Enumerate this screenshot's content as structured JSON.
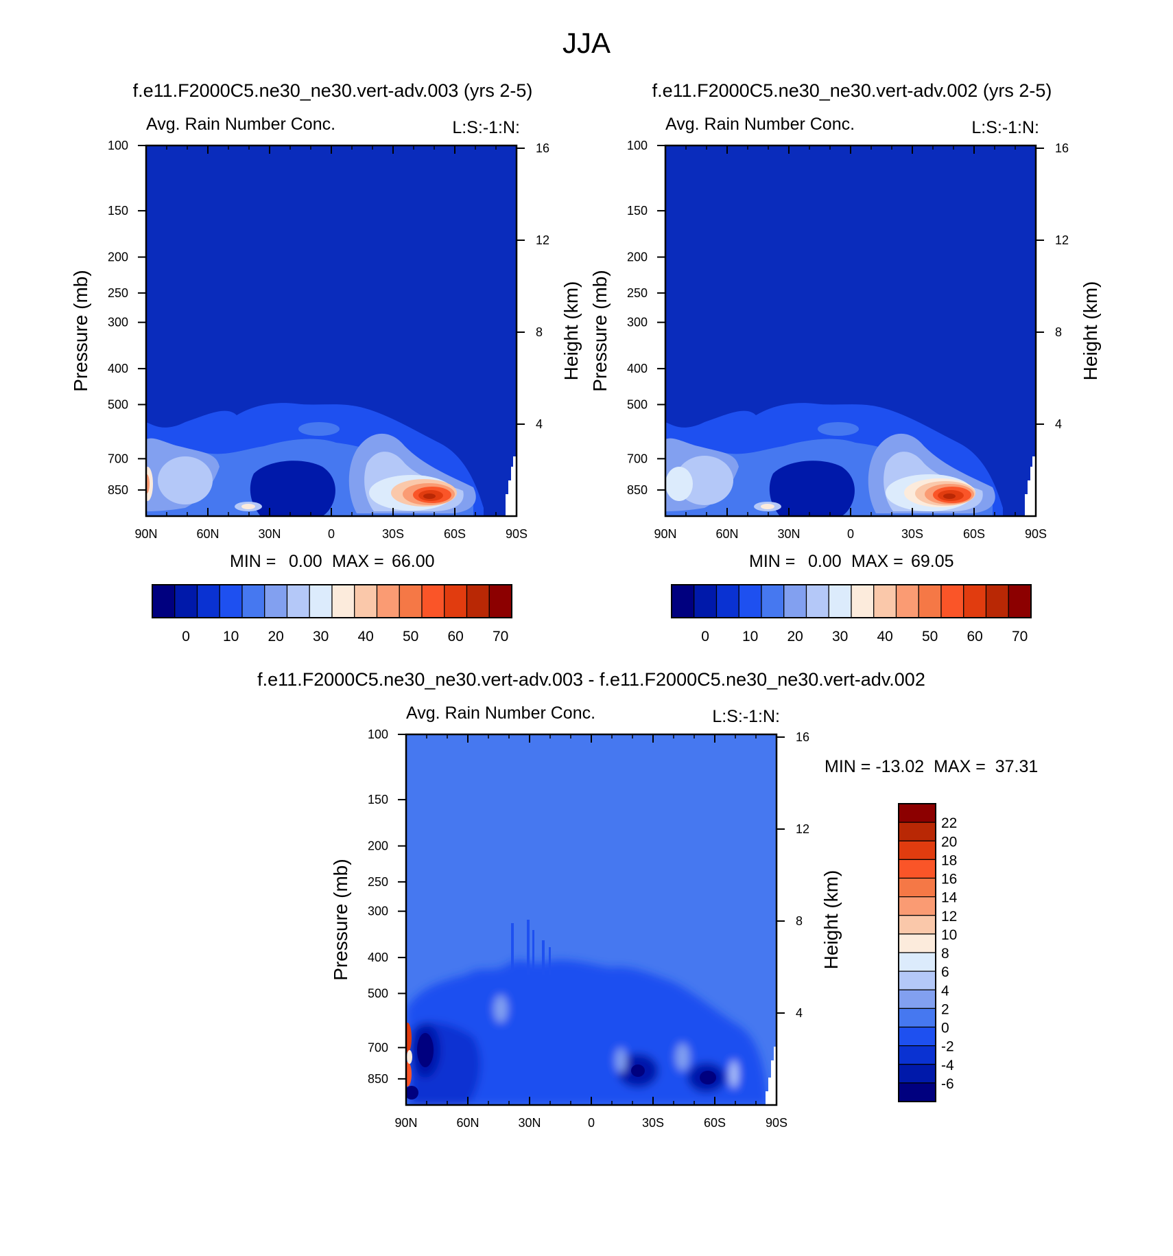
{
  "page_title": "JJA",
  "chart_data": [
    {
      "type": "contour",
      "title": "f.e11.F2000C5.ne30_ne30.vert-adv.003 (yrs 2-5)",
      "subtitle_left": "Avg. Rain Number Conc.",
      "subtitle_right": "L:S:-1:N:",
      "xlabel": "",
      "ylabel": "Pressure (mb)",
      "ylabel_right": "Height (km)",
      "x_ticks": [
        "90N",
        "60N",
        "30N",
        "0",
        "30S",
        "60S",
        "90S"
      ],
      "y_ticks": [
        100,
        150,
        200,
        250,
        300,
        400,
        500,
        700,
        850
      ],
      "y_right_ticks": [
        16,
        12,
        8,
        4
      ],
      "ylim": [
        100,
        1000
      ],
      "y_scale": "log",
      "stats": {
        "min_label": "MIN =",
        "min": "0.00",
        "max_label": "MAX =",
        "max": "66.00"
      },
      "colorbar": {
        "orientation": "horizontal",
        "tick_labels": [
          "0",
          "10",
          "20",
          "30",
          "40",
          "50",
          "60",
          "70"
        ],
        "colors": [
          "#00007f",
          "#0019aa",
          "#0a32d2",
          "#1e50f0",
          "#4678f0",
          "#82a0f0",
          "#b4c8f8",
          "#dcebfc",
          "#fcebdc",
          "#fac8aa",
          "#fa9b73",
          "#f57846",
          "#fa5528",
          "#e13c0f",
          "#b92805",
          "#8c0000"
        ]
      }
    },
    {
      "type": "contour",
      "title": "f.e11.F2000C5.ne30_ne30.vert-adv.002 (yrs 2-5)",
      "subtitle_left": "Avg. Rain Number Conc.",
      "subtitle_right": "L:S:-1:N:",
      "xlabel": "",
      "ylabel": "Pressure (mb)",
      "ylabel_right": "Height (km)",
      "x_ticks": [
        "90N",
        "60N",
        "30N",
        "0",
        "30S",
        "60S",
        "90S"
      ],
      "y_ticks": [
        100,
        150,
        200,
        250,
        300,
        400,
        500,
        700,
        850
      ],
      "y_right_ticks": [
        16,
        12,
        8,
        4
      ],
      "ylim": [
        100,
        1000
      ],
      "y_scale": "log",
      "stats": {
        "min_label": "MIN =",
        "min": "0.00",
        "max_label": "MAX =",
        "max": "69.05"
      },
      "colorbar": {
        "orientation": "horizontal",
        "tick_labels": [
          "0",
          "10",
          "20",
          "30",
          "40",
          "50",
          "60",
          "70"
        ],
        "colors": [
          "#00007f",
          "#0019aa",
          "#0a32d2",
          "#1e50f0",
          "#4678f0",
          "#82a0f0",
          "#b4c8f8",
          "#dcebfc",
          "#fcebdc",
          "#fac8aa",
          "#fa9b73",
          "#f57846",
          "#fa5528",
          "#e13c0f",
          "#b92805",
          "#8c0000"
        ]
      }
    },
    {
      "type": "contour",
      "title": "f.e11.F2000C5.ne30_ne30.vert-adv.003 - f.e11.F2000C5.ne30_ne30.vert-adv.002",
      "subtitle_left": "Avg. Rain Number Conc.",
      "subtitle_right": "L:S:-1:N:",
      "xlabel": "",
      "ylabel": "Pressure (mb)",
      "ylabel_right": "Height (km)",
      "x_ticks": [
        "90N",
        "60N",
        "30N",
        "0",
        "30S",
        "60S",
        "90S"
      ],
      "y_ticks": [
        100,
        150,
        200,
        250,
        300,
        400,
        500,
        700,
        850
      ],
      "y_right_ticks": [
        16,
        12,
        8,
        4
      ],
      "ylim": [
        100,
        1000
      ],
      "y_scale": "log",
      "stats_text": "MIN = -13.02  MAX =  37.31",
      "colorbar": {
        "orientation": "vertical",
        "tick_labels": [
          "22",
          "20",
          "18",
          "16",
          "14",
          "12",
          "10",
          "8",
          "6",
          "4",
          "2",
          "0",
          "-2",
          "-4",
          "-6"
        ],
        "colors": [
          "#8c0000",
          "#b92805",
          "#e13c0f",
          "#fa5528",
          "#f57846",
          "#fa9b73",
          "#fac8aa",
          "#fcebdc",
          "#dcebfc",
          "#b4c8f8",
          "#82a0f0",
          "#4678f0",
          "#1e50f0",
          "#0a32d2",
          "#0019aa",
          "#00007f"
        ]
      }
    }
  ]
}
